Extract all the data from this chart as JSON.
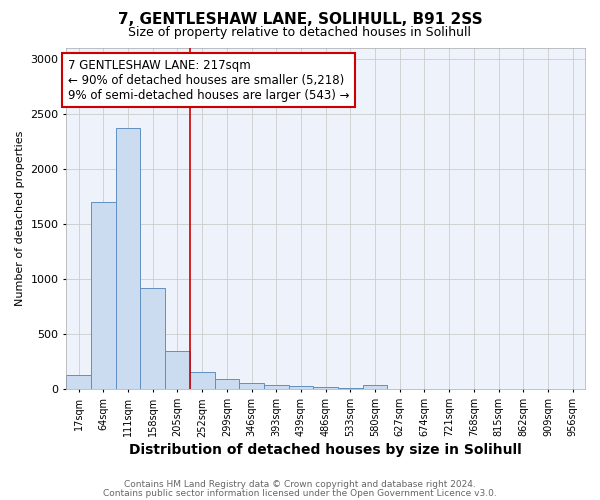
{
  "title1": "7, GENTLESHAW LANE, SOLIHULL, B91 2SS",
  "title2": "Size of property relative to detached houses in Solihull",
  "xlabel": "Distribution of detached houses by size in Solihull",
  "ylabel": "Number of detached properties",
  "categories": [
    "17sqm",
    "64sqm",
    "111sqm",
    "158sqm",
    "205sqm",
    "252sqm",
    "299sqm",
    "346sqm",
    "393sqm",
    "439sqm",
    "486sqm",
    "533sqm",
    "580sqm",
    "627sqm",
    "674sqm",
    "721sqm",
    "768sqm",
    "815sqm",
    "862sqm",
    "909sqm",
    "956sqm"
  ],
  "values": [
    130,
    1700,
    2370,
    920,
    350,
    160,
    90,
    55,
    40,
    35,
    20,
    10,
    40,
    0,
    0,
    0,
    0,
    0,
    0,
    0,
    0
  ],
  "bar_color": "#ccdcf0",
  "bar_edge_color": "#6090c0",
  "vline_color": "#cc0000",
  "vline_x_index": 4.5,
  "annotation_text": "7 GENTLESHAW LANE: 217sqm\n← 90% of detached houses are smaller (5,218)\n9% of semi-detached houses are larger (543) →",
  "annotation_box_facecolor": "#ffffff",
  "annotation_box_edgecolor": "#cc0000",
  "ylim": [
    0,
    3100
  ],
  "yticks": [
    0,
    500,
    1000,
    1500,
    2000,
    2500,
    3000
  ],
  "footer1": "Contains HM Land Registry data © Crown copyright and database right 2024.",
  "footer2": "Contains public sector information licensed under the Open Government Licence v3.0.",
  "grid_color": "#cccccc",
  "plot_bg_color": "#eef2fa",
  "fig_bg_color": "#ffffff",
  "title1_fontsize": 11,
  "title2_fontsize": 9,
  "xlabel_fontsize": 10,
  "ylabel_fontsize": 8,
  "annotation_fontsize": 8.5,
  "xtick_fontsize": 7,
  "ytick_fontsize": 8,
  "footer_fontsize": 6.5
}
